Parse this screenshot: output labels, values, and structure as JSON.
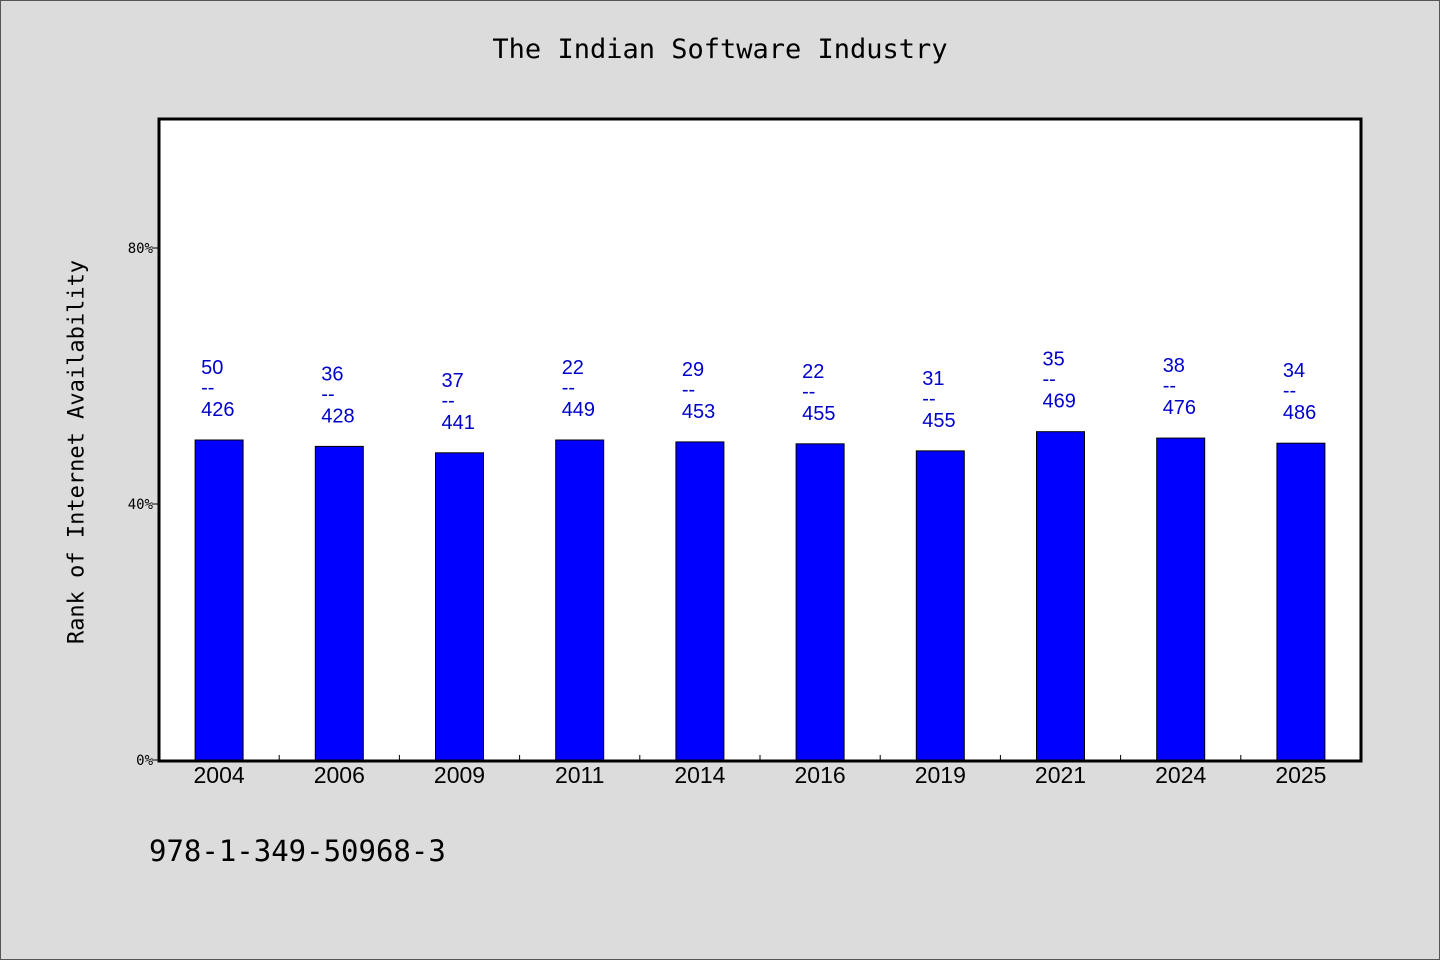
{
  "chart_data": {
    "type": "bar",
    "title": "The Indian Software Industry",
    "ylabel": "Rank of Internet Availability",
    "xlabel": "",
    "categories": [
      "2004",
      "2006",
      "2009",
      "2011",
      "2014",
      "2016",
      "2019",
      "2021",
      "2024",
      "2025"
    ],
    "values": [
      50,
      49,
      48,
      50,
      49.7,
      49.4,
      48.3,
      51.3,
      50.3,
      49.5
    ],
    "data_labels": [
      {
        "top": "50",
        "bottom": "426"
      },
      {
        "top": "36",
        "bottom": "428"
      },
      {
        "top": "37",
        "bottom": "441"
      },
      {
        "top": "22",
        "bottom": "449"
      },
      {
        "top": "29",
        "bottom": "453"
      },
      {
        "top": "22",
        "bottom": "455"
      },
      {
        "top": "31",
        "bottom": "455"
      },
      {
        "top": "35",
        "bottom": "469"
      },
      {
        "top": "38",
        "bottom": "476"
      },
      {
        "top": "34",
        "bottom": "486"
      }
    ],
    "label_separator": "--",
    "y_ticks": [
      {
        "value": 0,
        "label": "0%"
      },
      {
        "value": 40,
        "label": "40%"
      },
      {
        "value": 80,
        "label": "80%"
      }
    ],
    "ylim": [
      0,
      100
    ],
    "grid": false,
    "bar_color": "#0000ff",
    "label_color": "#0000cc"
  },
  "footer": {
    "isbn": "978-1-349-50968-3"
  }
}
